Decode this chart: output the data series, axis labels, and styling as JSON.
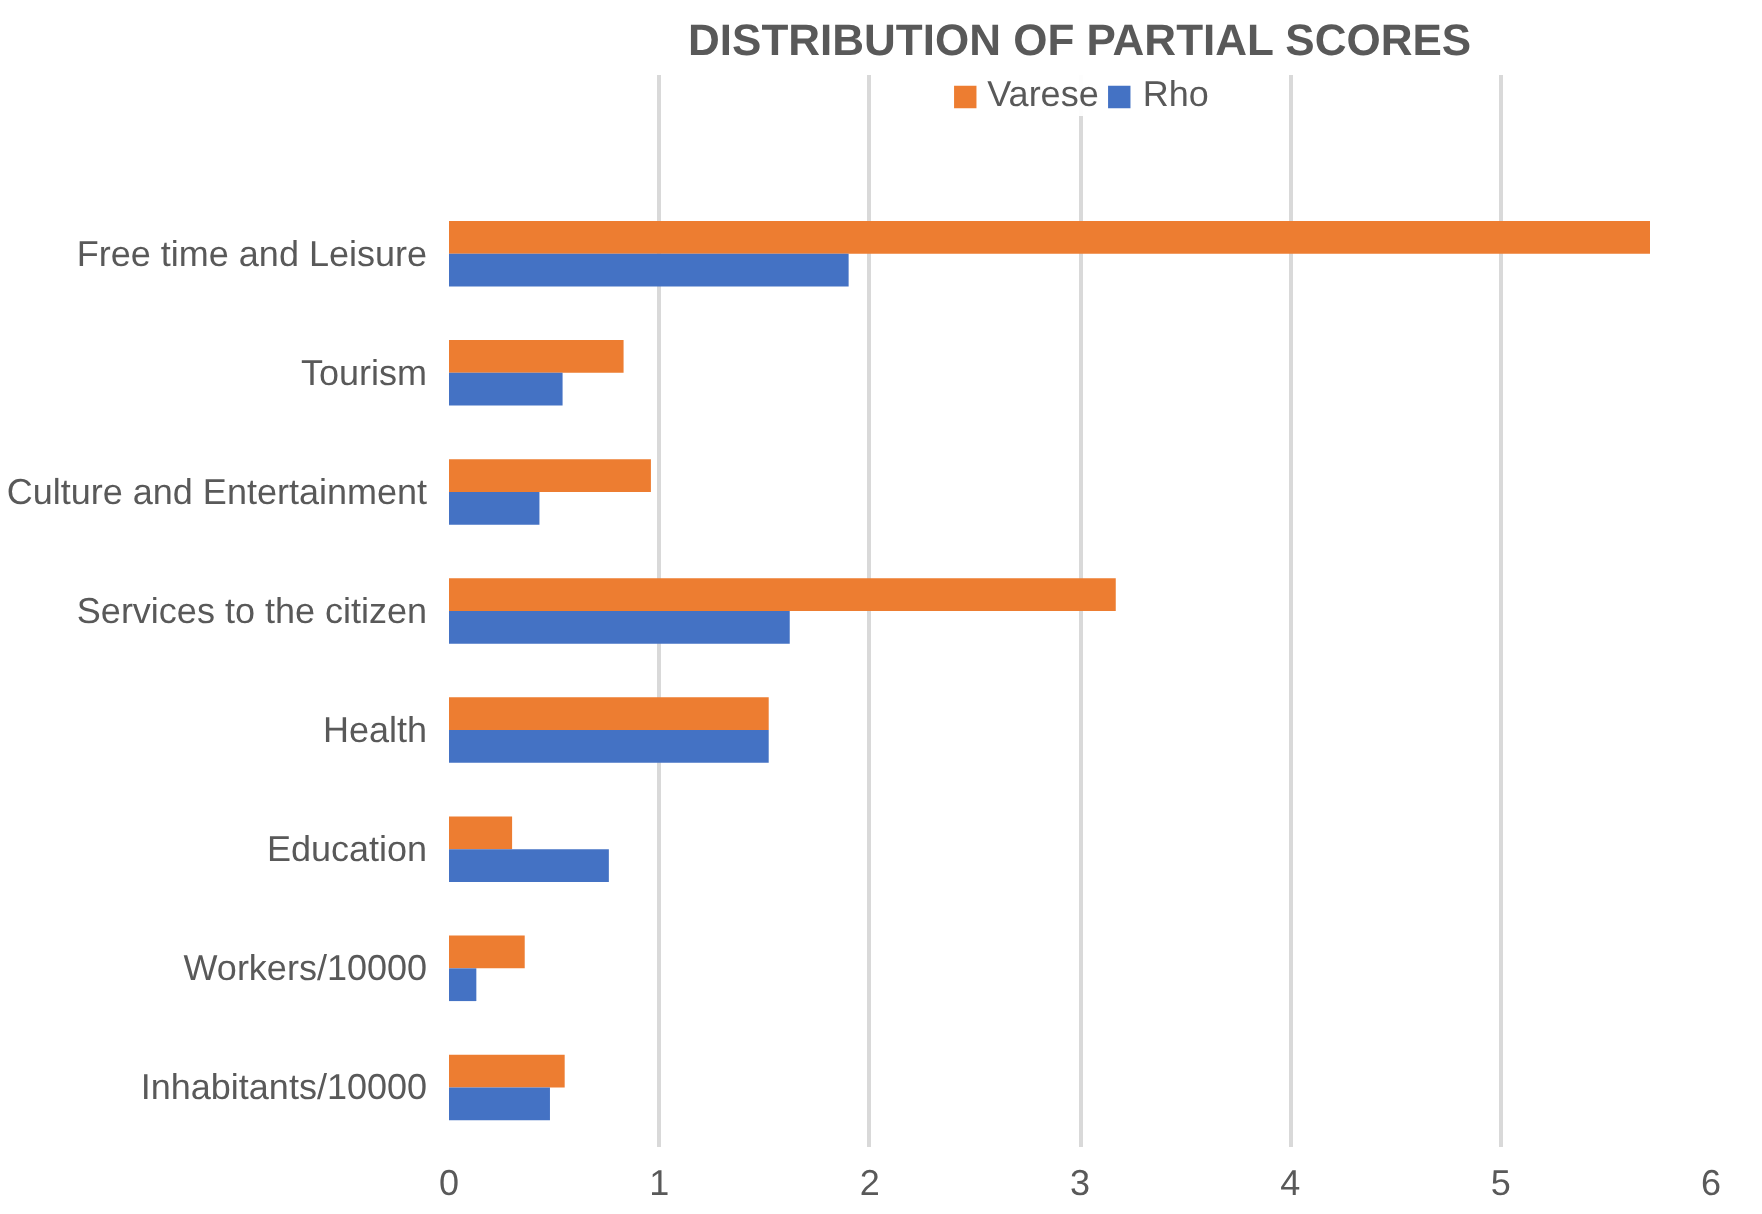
{
  "chart_data": {
    "type": "bar",
    "orientation": "horizontal",
    "title": "DISTRIBUTION OF PARTIAL SCORES",
    "categories": [
      "Free time and Leisure",
      "Tourism",
      "Culture and Entertainment",
      "Services to the citizen",
      "Health",
      "Education",
      "Workers/10000",
      "Inhabitants/10000"
    ],
    "series": [
      {
        "name": "Varese",
        "color": "#ed7d31",
        "values": [
          5.71,
          0.83,
          0.96,
          3.17,
          1.52,
          0.3,
          0.36,
          0.55
        ]
      },
      {
        "name": "Rho",
        "color": "#4472c4",
        "values": [
          1.9,
          0.54,
          0.43,
          1.62,
          1.52,
          0.76,
          0.13,
          0.48
        ]
      }
    ],
    "xlim": [
      0,
      6
    ],
    "xticks": [
      0,
      1,
      2,
      3,
      4,
      5,
      6
    ],
    "grid": "x",
    "legend": "top"
  }
}
